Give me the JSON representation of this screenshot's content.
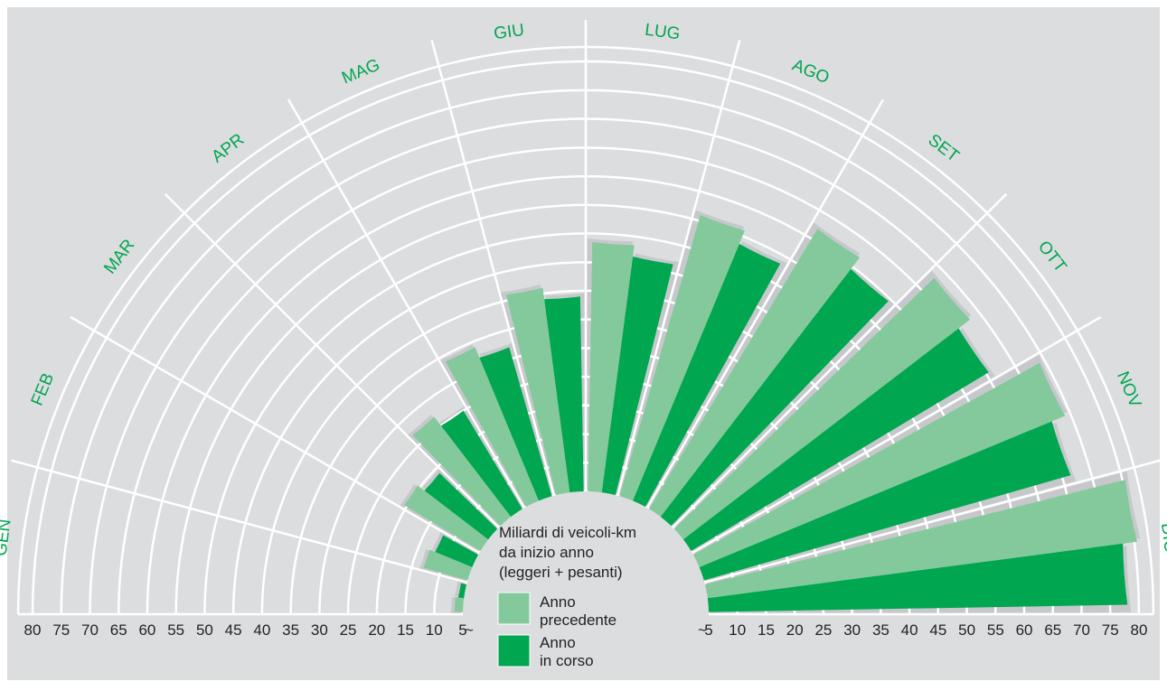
{
  "chart_data": {
    "type": "polar-bar",
    "caption": [
      "Miliardi di veicoli-km",
      "da inizio anno",
      "(leggeri + pesanti)"
    ],
    "months": [
      "GEN",
      "FEB",
      "MAR",
      "APR",
      "MAG",
      "GIU",
      "LUG",
      "AGO",
      "SET",
      "OTT",
      "NOV",
      "DIC"
    ],
    "radial_ticks": [
      "5",
      "10",
      "15",
      "20",
      "25",
      "30",
      "35",
      "40",
      "45",
      "50",
      "55",
      "60",
      "65",
      "70",
      "75",
      "80"
    ],
    "radial_range": [
      5,
      80
    ],
    "break_symbol": "~",
    "series": [
      {
        "name": "Anno precedente",
        "values": [
          6.5,
          13,
          20.5,
          27,
          34,
          41,
          48.5,
          56,
          62,
          68,
          74,
          80.5
        ]
      },
      {
        "name": "Anno in corso",
        "values": [
          6,
          12,
          19,
          25,
          32,
          39,
          46.5,
          53.5,
          59.5,
          65.5,
          71.5,
          78
        ]
      }
    ],
    "legend": [
      {
        "label_line1": "Anno",
        "label_line2": "precedente"
      },
      {
        "label_line1": "Anno",
        "label_line2": "in corso"
      }
    ],
    "colors": {
      "background": "#dcdddf",
      "grid": "#ffffff",
      "previous": "#84c99c",
      "current": "#00a650",
      "month_label": "#00a650",
      "text": "#222222",
      "shadow": "#c6c8cb"
    }
  }
}
